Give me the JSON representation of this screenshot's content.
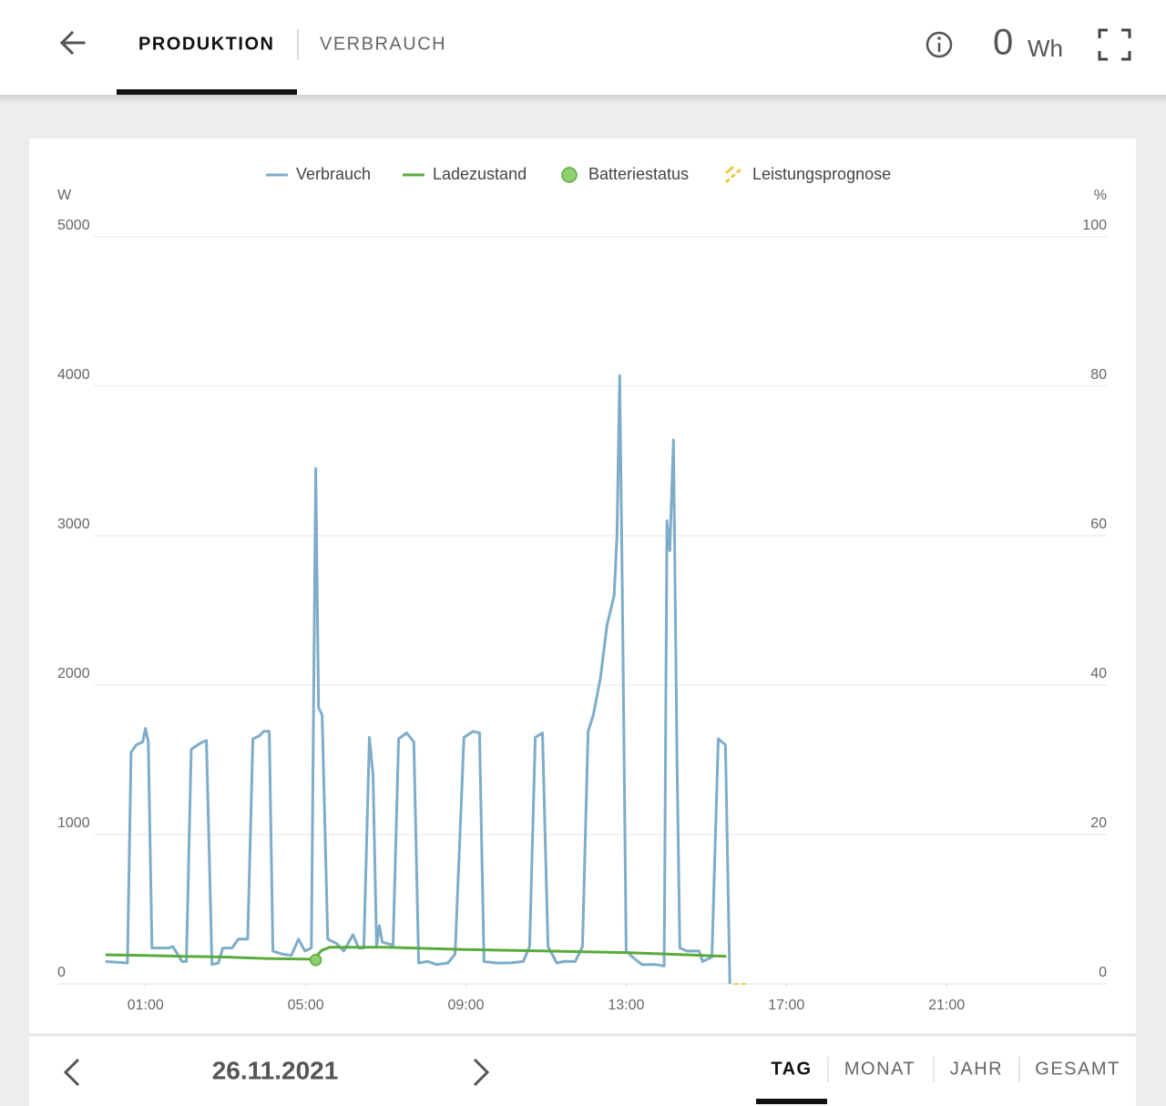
{
  "header": {
    "tabs": [
      "PRODUKTION",
      "VERBRAUCH"
    ],
    "total_value": "0",
    "total_unit": "Wh"
  },
  "chart_data": {
    "type": "line",
    "ylabel": "W",
    "y2label": "%",
    "xlim": [
      -1.2,
      25
    ],
    "xticks": [
      {
        "value": 1,
        "label": "01:00"
      },
      {
        "value": 5,
        "label": "05:00"
      },
      {
        "value": 9,
        "label": "09:00"
      },
      {
        "value": 13,
        "label": "13:00"
      },
      {
        "value": 17,
        "label": "17:00"
      },
      {
        "value": 21,
        "label": "21:00"
      }
    ],
    "ylim": [
      0,
      5000
    ],
    "yticks": [
      0,
      1000,
      2000,
      3000,
      4000,
      5000
    ],
    "y2lim": [
      0,
      100
    ],
    "y2ticks": [
      0,
      20,
      40,
      60,
      80,
      100
    ],
    "grid": true,
    "legend": "top",
    "series": [
      {
        "name": "Verbrauch",
        "color": "#7eacc9",
        "style": "line",
        "x": [
          0,
          0.55,
          0.64,
          0.77,
          0.93,
          1.0,
          1.07,
          1.16,
          1.57,
          1.68,
          1.8,
          1.91,
          2.02,
          2.14,
          2.36,
          2.52,
          2.66,
          2.82,
          2.93,
          3.16,
          3.32,
          3.55,
          3.68,
          3.84,
          3.95,
          4.09,
          4.18,
          4.41,
          4.64,
          4.82,
          4.98,
          5.14,
          5.25,
          5.32,
          5.41,
          5.55,
          5.77,
          5.95,
          6.18,
          6.32,
          6.45,
          6.59,
          6.68,
          6.77,
          6.84,
          6.91,
          7.18,
          7.32,
          7.52,
          7.7,
          7.82,
          8.05,
          8.27,
          8.55,
          8.73,
          8.95,
          9.18,
          9.34,
          9.45,
          9.75,
          10.09,
          10.43,
          10.59,
          10.73,
          10.91,
          11.05,
          11.27,
          11.45,
          11.73,
          11.91,
          12.05,
          12.18,
          12.36,
          12.52,
          12.7,
          12.77,
          12.84,
          12.91,
          13.0,
          13.16,
          13.39,
          13.73,
          13.95,
          14.02,
          14.09,
          14.18,
          14.27,
          14.34,
          14.52,
          14.82,
          14.91,
          15.14,
          15.3,
          15.48,
          15.59
        ],
        "values": [
          150,
          140,
          1550,
          1600,
          1620,
          1710,
          1620,
          240,
          240,
          250,
          200,
          150,
          150,
          1570,
          1610,
          1630,
          130,
          140,
          240,
          240,
          300,
          300,
          1640,
          1660,
          1690,
          1690,
          220,
          200,
          190,
          300,
          220,
          240,
          3450,
          1850,
          1800,
          300,
          270,
          220,
          330,
          240,
          240,
          1650,
          1400,
          250,
          390,
          280,
          260,
          1640,
          1680,
          1620,
          140,
          150,
          130,
          140,
          200,
          1650,
          1690,
          1680,
          150,
          140,
          140,
          150,
          250,
          1650,
          1680,
          250,
          140,
          150,
          150,
          250,
          1690,
          1800,
          2050,
          2400,
          2600,
          3000,
          4070,
          2500,
          220,
          180,
          130,
          130,
          120,
          3100,
          2900,
          3640,
          1500,
          240,
          220,
          220,
          150,
          180,
          1640,
          1600,
          0
        ]
      },
      {
        "name": "Ladezustand",
        "color": "#5aab3c",
        "style": "line",
        "axis": "y2",
        "x": [
          0,
          1,
          2,
          3,
          4,
          5.2,
          5.4,
          5.6,
          7,
          9,
          11,
          13,
          15.5
        ],
        "values": [
          3.9,
          3.8,
          3.7,
          3.6,
          3.4,
          3.3,
          4.5,
          4.9,
          4.9,
          4.6,
          4.4,
          4.2,
          3.7
        ]
      },
      {
        "name": "Batteriestatus",
        "color": "#8fcf72",
        "style": "point",
        "axis": "y2",
        "x": [
          5.25
        ],
        "values": [
          3.2
        ]
      },
      {
        "name": "Leistungsprognose",
        "color": "#f2c744",
        "style": "hatch",
        "x": [
          15.7,
          16.0
        ],
        "values": [
          0,
          0
        ]
      }
    ]
  },
  "footer": {
    "date": "26.11.2021",
    "periods": [
      "TAG",
      "MONAT",
      "JAHR",
      "GESAMT"
    ]
  }
}
